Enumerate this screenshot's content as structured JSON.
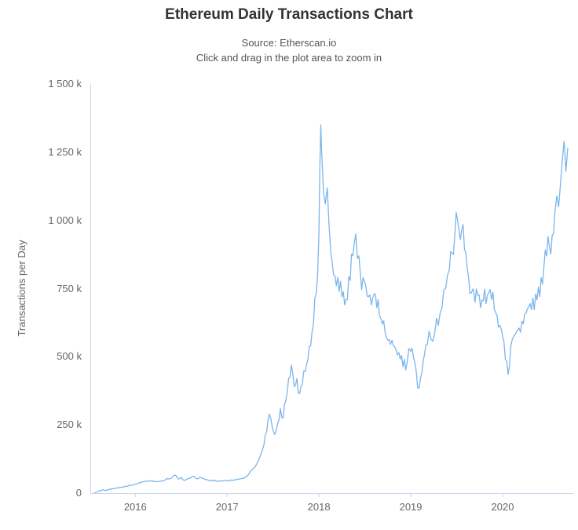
{
  "header": {
    "title": "Ethereum Daily Transactions Chart",
    "subtitle_line1": "Source: Etherscan.io",
    "subtitle_line2": "Click and drag in the plot area to zoom in"
  },
  "chart_data": {
    "type": "line",
    "title": "Ethereum Daily Transactions Chart",
    "subtitle": "Source: Etherscan.io — Click and drag in the plot area to zoom in",
    "xlabel": "",
    "ylabel": "Transactions per Day",
    "x_unit": "year (decimal)",
    "y_unit": "thousand transactions per day",
    "xlim": [
      2015.51,
      2020.77
    ],
    "ylim": [
      0,
      1500
    ],
    "x_ticks": [
      2016,
      2017,
      2018,
      2019,
      2020
    ],
    "x_tick_labels": [
      "2016",
      "2017",
      "2018",
      "2019",
      "2020"
    ],
    "y_ticks": [
      0,
      250,
      500,
      750,
      1000,
      1250,
      1500
    ],
    "y_tick_labels": [
      "0",
      "250 k",
      "500 k",
      "750 k",
      "1 000 k",
      "1 250 k",
      "1 500 k"
    ],
    "grid": false,
    "legend": false,
    "axis_line_color": "#ccd6eb",
    "noise_amp": 0.07,
    "series": [
      {
        "name": "Transactions per Day",
        "color": "#7cb5ec",
        "points": [
          [
            2015.56,
            1
          ],
          [
            2015.6,
            7
          ],
          [
            2015.64,
            12
          ],
          [
            2015.68,
            9
          ],
          [
            2015.72,
            14
          ],
          [
            2015.76,
            16
          ],
          [
            2015.8,
            19
          ],
          [
            2015.84,
            21
          ],
          [
            2015.88,
            24
          ],
          [
            2015.92,
            26
          ],
          [
            2015.96,
            29
          ],
          [
            2016.0,
            33
          ],
          [
            2016.04,
            37
          ],
          [
            2016.08,
            41
          ],
          [
            2016.12,
            44
          ],
          [
            2016.16,
            46
          ],
          [
            2016.2,
            44
          ],
          [
            2016.24,
            42
          ],
          [
            2016.28,
            44
          ],
          [
            2016.32,
            47
          ],
          [
            2016.36,
            52
          ],
          [
            2016.4,
            57
          ],
          [
            2016.44,
            66
          ],
          [
            2016.47,
            52
          ],
          [
            2016.5,
            58
          ],
          [
            2016.53,
            47
          ],
          [
            2016.56,
            51
          ],
          [
            2016.6,
            55
          ],
          [
            2016.64,
            62
          ],
          [
            2016.68,
            52
          ],
          [
            2016.72,
            56
          ],
          [
            2016.76,
            50
          ],
          [
            2016.8,
            47
          ],
          [
            2016.84,
            45
          ],
          [
            2016.88,
            44
          ],
          [
            2016.92,
            43
          ],
          [
            2016.96,
            44
          ],
          [
            2017.0,
            46
          ],
          [
            2017.04,
            48
          ],
          [
            2017.08,
            49
          ],
          [
            2017.12,
            51
          ],
          [
            2017.16,
            54
          ],
          [
            2017.2,
            60
          ],
          [
            2017.24,
            72
          ],
          [
            2017.28,
            88
          ],
          [
            2017.32,
            105
          ],
          [
            2017.36,
            135
          ],
          [
            2017.4,
            175
          ],
          [
            2017.43,
            225
          ],
          [
            2017.46,
            290
          ],
          [
            2017.49,
            245
          ],
          [
            2017.52,
            215
          ],
          [
            2017.55,
            255
          ],
          [
            2017.58,
            310
          ],
          [
            2017.61,
            275
          ],
          [
            2017.64,
            340
          ],
          [
            2017.67,
            420
          ],
          [
            2017.7,
            470
          ],
          [
            2017.73,
            390
          ],
          [
            2017.76,
            420
          ],
          [
            2017.79,
            365
          ],
          [
            2017.82,
            400
          ],
          [
            2017.85,
            445
          ],
          [
            2017.88,
            490
          ],
          [
            2017.91,
            540
          ],
          [
            2017.94,
            620
          ],
          [
            2017.97,
            730
          ],
          [
            2018.0,
            950
          ],
          [
            2018.01,
            1200
          ],
          [
            2018.02,
            1350
          ],
          [
            2018.03,
            1250
          ],
          [
            2018.05,
            1100
          ],
          [
            2018.07,
            1060
          ],
          [
            2018.09,
            1120
          ],
          [
            2018.11,
            980
          ],
          [
            2018.13,
            880
          ],
          [
            2018.16,
            800
          ],
          [
            2018.19,
            760
          ],
          [
            2018.22,
            740
          ],
          [
            2018.25,
            720
          ],
          [
            2018.28,
            690
          ],
          [
            2018.31,
            710
          ],
          [
            2018.34,
            780
          ],
          [
            2018.37,
            870
          ],
          [
            2018.4,
            950
          ],
          [
            2018.42,
            860
          ],
          [
            2018.45,
            810
          ],
          [
            2018.48,
            790
          ],
          [
            2018.51,
            760
          ],
          [
            2018.54,
            720
          ],
          [
            2018.57,
            690
          ],
          [
            2018.6,
            730
          ],
          [
            2018.63,
            680
          ],
          [
            2018.66,
            650
          ],
          [
            2018.69,
            620
          ],
          [
            2018.72,
            590
          ],
          [
            2018.75,
            560
          ],
          [
            2018.78,
            545
          ],
          [
            2018.81,
            540
          ],
          [
            2018.84,
            525
          ],
          [
            2018.87,
            515
          ],
          [
            2018.9,
            505
          ],
          [
            2018.93,
            490
          ],
          [
            2018.96,
            478
          ],
          [
            2019.0,
            520
          ],
          [
            2019.03,
            495
          ],
          [
            2019.06,
            445
          ],
          [
            2019.09,
            385
          ],
          [
            2019.12,
            440
          ],
          [
            2019.15,
            510
          ],
          [
            2019.18,
            545
          ],
          [
            2019.22,
            565
          ],
          [
            2019.26,
            585
          ],
          [
            2019.3,
            615
          ],
          [
            2019.34,
            680
          ],
          [
            2019.38,
            750
          ],
          [
            2019.42,
            820
          ],
          [
            2019.45,
            880
          ],
          [
            2019.48,
            950
          ],
          [
            2019.51,
            1000
          ],
          [
            2019.54,
            930
          ],
          [
            2019.57,
            985
          ],
          [
            2019.6,
            880
          ],
          [
            2019.63,
            790
          ],
          [
            2019.66,
            735
          ],
          [
            2019.7,
            700
          ],
          [
            2019.73,
            725
          ],
          [
            2019.76,
            680
          ],
          [
            2019.79,
            705
          ],
          [
            2019.82,
            695
          ],
          [
            2019.85,
            735
          ],
          [
            2019.88,
            710
          ],
          [
            2019.91,
            675
          ],
          [
            2019.94,
            650
          ],
          [
            2019.97,
            615
          ],
          [
            2020.0,
            575
          ],
          [
            2020.03,
            490
          ],
          [
            2020.06,
            435
          ],
          [
            2020.09,
            540
          ],
          [
            2020.12,
            575
          ],
          [
            2020.15,
            590
          ],
          [
            2020.18,
            605
          ],
          [
            2020.21,
            630
          ],
          [
            2020.24,
            655
          ],
          [
            2020.27,
            675
          ],
          [
            2020.3,
            695
          ],
          [
            2020.33,
            715
          ],
          [
            2020.36,
            730
          ],
          [
            2020.39,
            755
          ],
          [
            2020.42,
            790
          ],
          [
            2020.45,
            830
          ],
          [
            2020.48,
            870
          ],
          [
            2020.51,
            905
          ],
          [
            2020.54,
            945
          ],
          [
            2020.57,
            1030
          ],
          [
            2020.59,
            1090
          ],
          [
            2020.61,
            1050
          ],
          [
            2020.63,
            1130
          ],
          [
            2020.65,
            1220
          ],
          [
            2020.67,
            1290
          ],
          [
            2020.69,
            1180
          ],
          [
            2020.71,
            1265
          ]
        ]
      }
    ]
  }
}
